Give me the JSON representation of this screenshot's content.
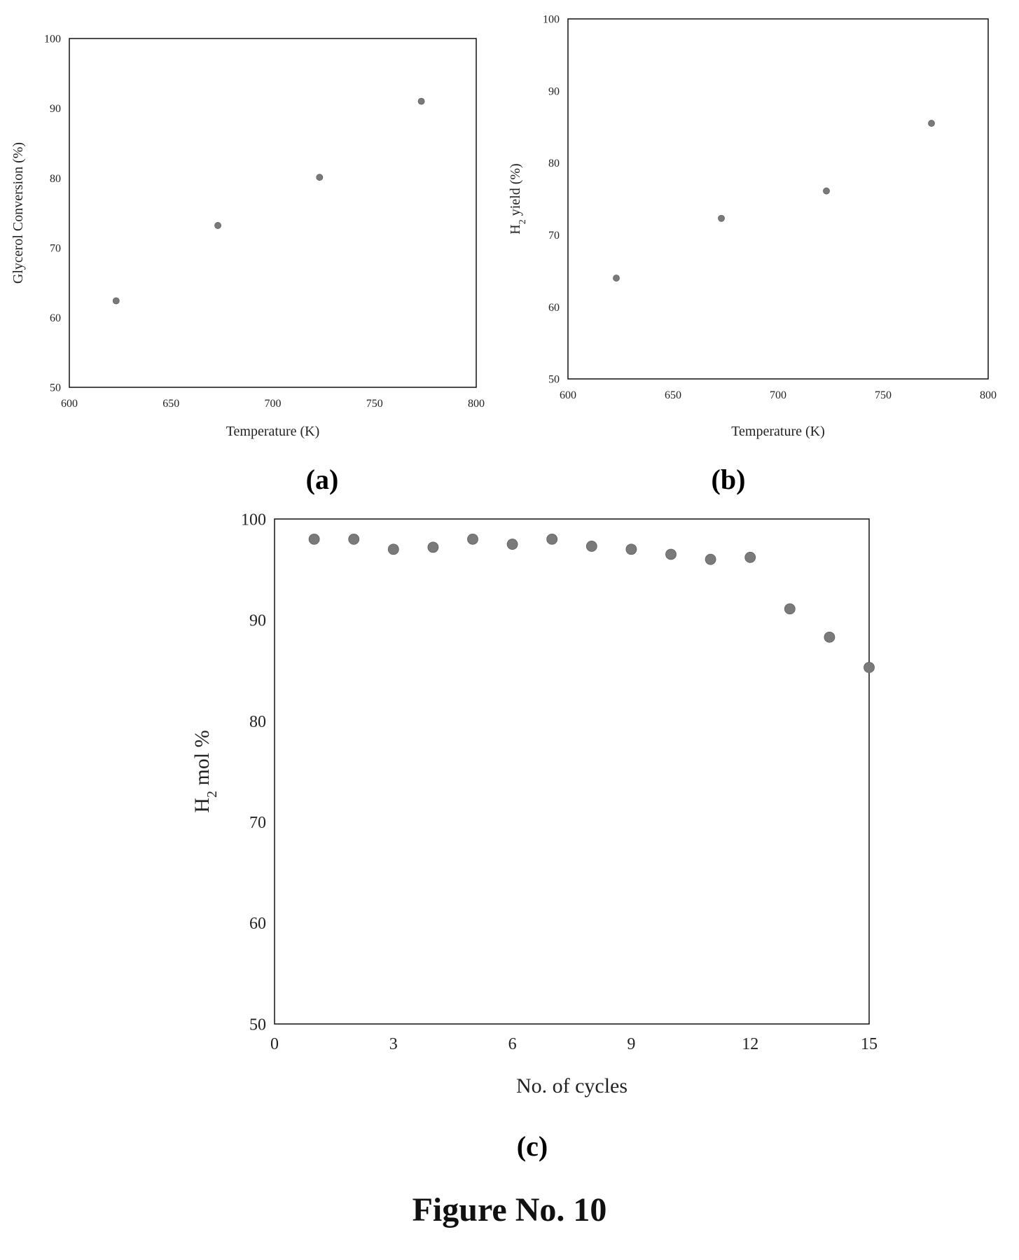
{
  "figure": {
    "title": "Figure No. 10"
  },
  "chart_data": [
    {
      "id": "a",
      "panel_label": "(a)",
      "type": "scatter",
      "title": "",
      "xlabel": "Temperature  (K)",
      "ylabel": "Glycerol  Conversion  (%)",
      "xlim": [
        600,
        800
      ],
      "ylim": [
        50,
        100
      ],
      "xticks": [
        600,
        650,
        700,
        750,
        800
      ],
      "yticks": [
        50,
        60,
        70,
        80,
        90,
        100
      ],
      "grid": false,
      "points": [
        {
          "x": 623,
          "y": 62.4
        },
        {
          "x": 673,
          "y": 73.2
        },
        {
          "x": 723,
          "y": 80.1
        },
        {
          "x": 773,
          "y": 91.0
        }
      ]
    },
    {
      "id": "b",
      "panel_label": "(b)",
      "type": "scatter",
      "title": "",
      "xlabel": "Temperature  (K)",
      "ylabel": "H2 yield  (%)",
      "xlim": [
        600,
        800
      ],
      "ylim": [
        50,
        100
      ],
      "xticks": [
        600,
        650,
        700,
        750,
        800
      ],
      "yticks": [
        50,
        60,
        70,
        80,
        90,
        100
      ],
      "grid": false,
      "points": [
        {
          "x": 623,
          "y": 64.0
        },
        {
          "x": 673,
          "y": 72.3
        },
        {
          "x": 723,
          "y": 76.1
        },
        {
          "x": 773,
          "y": 85.5
        }
      ]
    },
    {
      "id": "c",
      "panel_label": "(c)",
      "type": "scatter",
      "title": "",
      "xlabel": "No.  of  cycles",
      "ylabel": "H2 mol %",
      "xlim": [
        0,
        15
      ],
      "ylim": [
        50,
        100
      ],
      "xticks": [
        0,
        3,
        6,
        9,
        12,
        15
      ],
      "yticks": [
        50,
        60,
        70,
        80,
        90,
        100
      ],
      "grid": false,
      "points": [
        {
          "x": 1,
          "y": 98.0
        },
        {
          "x": 2,
          "y": 98.0
        },
        {
          "x": 3,
          "y": 97.0
        },
        {
          "x": 4,
          "y": 97.2
        },
        {
          "x": 5,
          "y": 98.0
        },
        {
          "x": 6,
          "y": 97.5
        },
        {
          "x": 7,
          "y": 98.0
        },
        {
          "x": 8,
          "y": 97.3
        },
        {
          "x": 9,
          "y": 97.0
        },
        {
          "x": 10,
          "y": 96.5
        },
        {
          "x": 11,
          "y": 96.0
        },
        {
          "x": 12,
          "y": 96.2
        },
        {
          "x": 13,
          "y": 91.1
        },
        {
          "x": 14,
          "y": 88.3
        },
        {
          "x": 15,
          "y": 85.3
        }
      ]
    }
  ],
  "colors": {
    "marker": "#7a7a7a",
    "axis": "#111111"
  }
}
